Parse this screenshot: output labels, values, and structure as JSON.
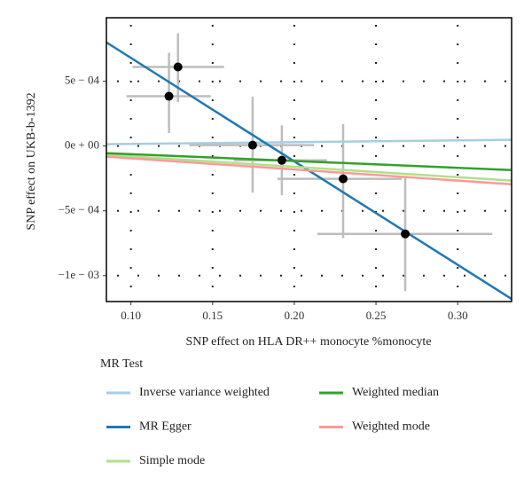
{
  "chart_data": {
    "type": "scatter",
    "x_label": "SNP effect on HLA DR++ monocyte %monocyte",
    "y_label": "SNP effect on UKB-b-1392",
    "xlim": [
      0.085,
      0.333
    ],
    "ylim": [
      -0.0012,
      0.00099
    ],
    "xticks": [
      {
        "value": 0.1,
        "label": "0.10"
      },
      0.15,
      {
        "value": 0.2,
        "label": "0.20"
      },
      0.25,
      {
        "value": 0.3,
        "label": "0.30"
      }
    ],
    "yticks": [
      {
        "value": 0.0005,
        "label": "5e − 04"
      },
      {
        "value": 0,
        "label": "0e + 00"
      },
      {
        "value": -0.0005,
        "label": "−5e − 04"
      },
      {
        "value": -0.001,
        "label": "−1e − 03"
      }
    ],
    "grid": true,
    "x": [
      0.1288,
      0.1233,
      0.1745,
      0.1924,
      0.2299,
      0.2679
    ],
    "y": [
      0.00061,
      0.000384,
      7e-06,
      -0.00011,
      -0.000253,
      -0.000678
    ],
    "x_lo": [
      0.101,
      0.0973,
      0.1358,
      0.163,
      0.1897,
      0.2141
    ],
    "x_hi": [
      0.157,
      0.1489,
      0.212,
      0.22,
      0.2658,
      0.3212
    ],
    "y_lo": [
      0.00034,
      0.0001,
      -0.00036,
      -0.00038,
      -0.00071,
      -0.00112
    ],
    "y_hi": [
      0.00087,
      0.00072,
      0.00038,
      0.00016,
      0.00017,
      -0.00024
    ],
    "point_color": "#000000",
    "error_color": "#bdbdbd",
    "legend_title": "MR Test",
    "line_x": [
      0.085,
      0.333
    ],
    "series": [
      {
        "name": "Inverse variance weighted",
        "color": "#a6cee3",
        "values": [
          1.4e-05,
          4.8e-05
        ]
      },
      {
        "name": "MR Egger",
        "color": "#1f78b4",
        "values": [
          0.0008,
          -0.00118
        ]
      },
      {
        "name": "Simple mode",
        "color": "#b2df8a",
        "values": [
          -6.8e-05,
          -0.000267
        ]
      },
      {
        "name": "Weighted median",
        "color": "#33a02c",
        "values": [
          -5.5e-05,
          -0.000185
        ]
      },
      {
        "name": "Weighted mode",
        "color": "#fb9a99",
        "values": [
          -8.2e-05,
          -0.000295
        ]
      }
    ]
  }
}
